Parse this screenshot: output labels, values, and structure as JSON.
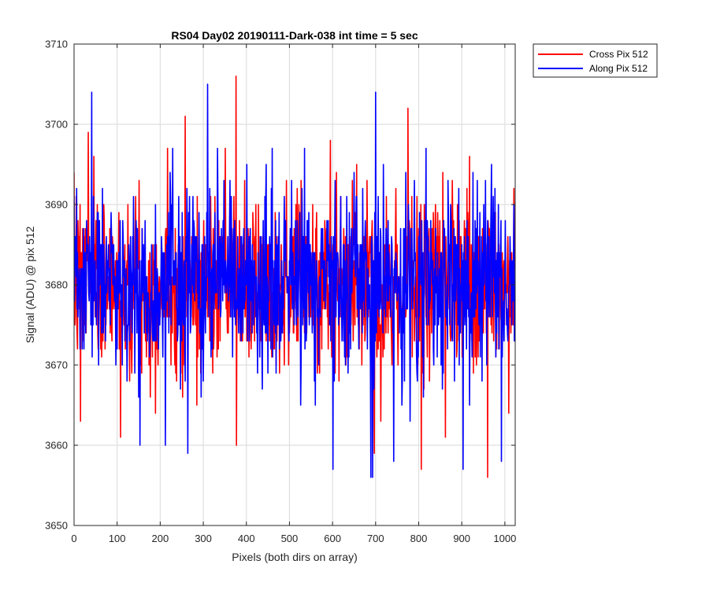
{
  "chart_data": {
    "type": "line",
    "title": "RS04 Day02 20190111-Dark-038 int time = 5 sec",
    "xlabel": "Pixels (both dirs on array)",
    "ylabel": "Signal (ADU) @ pix 512",
    "xlim": [
      0,
      1024
    ],
    "ylim": [
      3650,
      3710
    ],
    "xticks": [
      0,
      100,
      200,
      300,
      400,
      500,
      600,
      700,
      800,
      900,
      1000
    ],
    "yticks": [
      3650,
      3660,
      3670,
      3680,
      3690,
      3700,
      3710
    ],
    "grid": true,
    "legend_position": "outside-top-right",
    "series": [
      {
        "name": "Cross Pix 512",
        "color": "#ff0000",
        "mean": 3680,
        "sigma": 5.2,
        "seed": 7,
        "n_points": 1024,
        "extremes": [
          [
            5,
            3691
          ],
          [
            15,
            3663
          ],
          [
            33,
            3699
          ],
          [
            108,
            3661
          ],
          [
            177,
            3666
          ],
          [
            258,
            3701
          ],
          [
            285,
            3665
          ],
          [
            376,
            3706
          ],
          [
            377,
            3660
          ],
          [
            595,
            3698
          ],
          [
            697,
            3659
          ],
          [
            775,
            3702
          ],
          [
            806,
            3657
          ],
          [
            862,
            3661
          ],
          [
            960,
            3656
          ],
          [
            1021,
            3692
          ]
        ]
      },
      {
        "name": "Along Pix 512",
        "color": "#0000ff",
        "mean": 3680,
        "sigma": 5.4,
        "seed": 23,
        "n_points": 1024,
        "extremes": [
          [
            2,
            3686
          ],
          [
            41,
            3704
          ],
          [
            153,
            3660
          ],
          [
            212,
            3660
          ],
          [
            264,
            3659
          ],
          [
            310,
            3705
          ],
          [
            333,
            3697
          ],
          [
            401,
            3695
          ],
          [
            535,
            3697
          ],
          [
            601,
            3657
          ],
          [
            689,
            3656
          ],
          [
            693,
            3656
          ],
          [
            700,
            3704
          ],
          [
            742,
            3658
          ],
          [
            780,
            3663
          ],
          [
            903,
            3657
          ],
          [
            955,
            3693
          ],
          [
            992,
            3658
          ]
        ]
      }
    ]
  }
}
